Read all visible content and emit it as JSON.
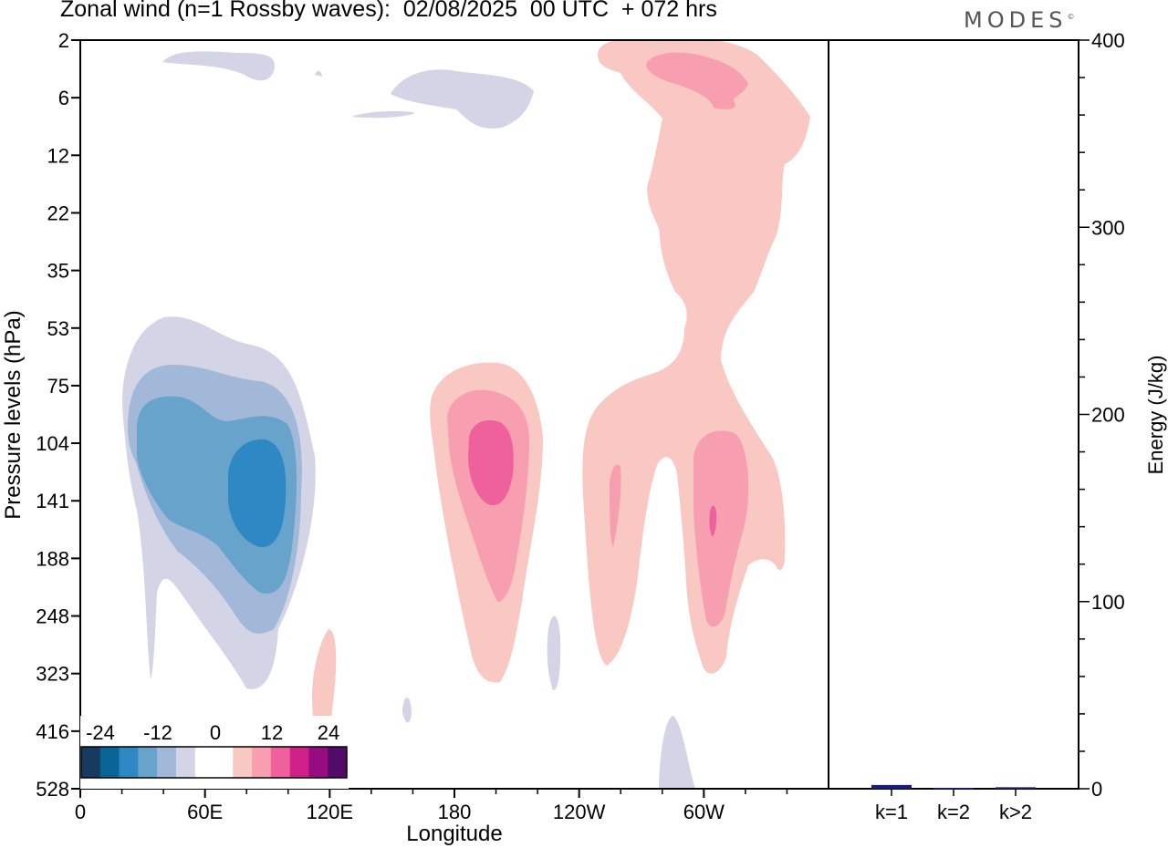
{
  "header": {
    "title": "Zonal wind (n=1 Rossby waves):  02/08/2025  00 UTC  + 072 hrs",
    "logo": "MODES"
  },
  "chart_data": [
    {
      "type": "heatmap",
      "title": "Zonal wind (n=1 Rossby waves):  02/08/2025  00 UTC  + 072 hrs",
      "xlabel": "Longitude",
      "ylabel": "Pressure levels (hPa)",
      "x_ticks": [
        "0",
        "60E",
        "120E",
        "180",
        "120W",
        "60W"
      ],
      "y_ticks": [
        "2",
        "6",
        "12",
        "22",
        "35",
        "53",
        "75",
        "104",
        "141",
        "188",
        "248",
        "323",
        "416",
        "528"
      ],
      "colorbar": {
        "tick_labels": [
          "-24",
          "-12",
          "0",
          "12",
          "24"
        ],
        "colors": [
          "#173a5e",
          "#0a6495",
          "#2d88c3",
          "#68a3cc",
          "#a2b8d8",
          "#d3d5e7",
          "#ffffff",
          "#ffffff",
          "#f9c8c2",
          "#f89eb1",
          "#ef619c",
          "#cf2188",
          "#970c80",
          "#530b6a"
        ]
      },
      "features": [
        {
          "sign": "negative",
          "level": -16,
          "longitude_center": 80,
          "pressure_center": 141
        },
        {
          "sign": "positive",
          "level": 12,
          "longitude_center": 195,
          "pressure_center": 110
        },
        {
          "sign": "positive",
          "level": 4,
          "longitude_center": 255,
          "pressure_center": 6
        },
        {
          "sign": "positive",
          "level": 8,
          "longitude_center": 300,
          "pressure_center": 141
        }
      ]
    },
    {
      "type": "bar",
      "ylabel": "Energy (J/kg)",
      "categories": [
        "k=1",
        "k=2",
        "k>2"
      ],
      "values": [
        2,
        0.5,
        0.8
      ],
      "ylim": [
        0,
        400
      ],
      "y_ticks": [
        "0",
        "100",
        "200",
        "300",
        "400"
      ],
      "bar_color": "#1a1a8a"
    }
  ]
}
